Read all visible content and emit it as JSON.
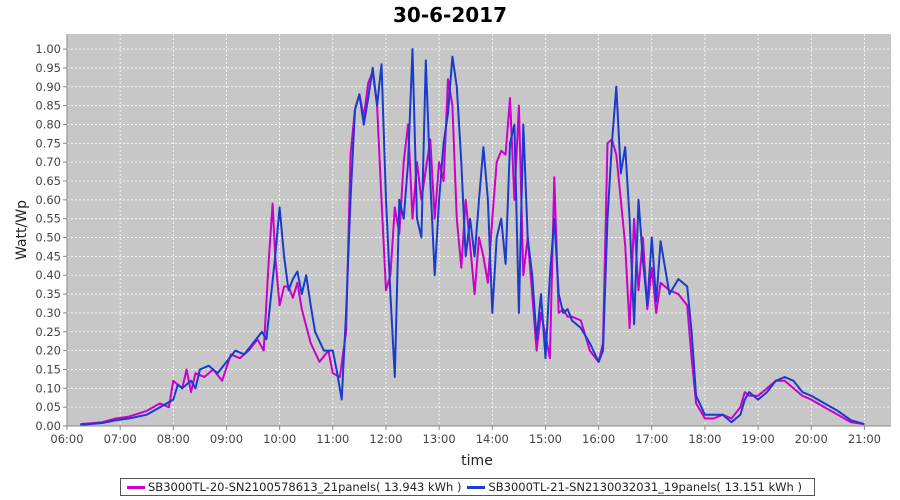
{
  "chart_data": {
    "type": "line",
    "title": "30-6-2017",
    "xlabel": "time",
    "ylabel": "Watt/Wp",
    "xlim": [
      "06:00",
      "21:30"
    ],
    "ylim": [
      0,
      1.04
    ],
    "grid": true,
    "legend_position": "bottom",
    "x_ticks": [
      "06:00",
      "07:00",
      "08:00",
      "09:00",
      "10:00",
      "11:00",
      "12:00",
      "13:00",
      "14:00",
      "15:00",
      "16:00",
      "17:00",
      "18:00",
      "19:00",
      "20:00",
      "21:00"
    ],
    "y_ticks": [
      "0.00",
      "0.05",
      "0.10",
      "0.15",
      "0.20",
      "0.25",
      "0.30",
      "0.35",
      "0.40",
      "0.45",
      "0.50",
      "0.55",
      "0.60",
      "0.65",
      "0.70",
      "0.75",
      "0.80",
      "0.85",
      "0.90",
      "0.95",
      "1.00"
    ],
    "series": [
      {
        "name": "SB3000TL-20-SN2100578613_21panels( 13.943 kWh )",
        "color": "#cc00cc",
        "points": [
          [
            "06:15",
            0.005
          ],
          [
            "06:40",
            0.01
          ],
          [
            "06:55",
            0.02
          ],
          [
            "07:10",
            0.025
          ],
          [
            "07:30",
            0.04
          ],
          [
            "07:45",
            0.06
          ],
          [
            "07:55",
            0.05
          ],
          [
            "08:00",
            0.12
          ],
          [
            "08:10",
            0.1
          ],
          [
            "08:15",
            0.15
          ],
          [
            "08:20",
            0.09
          ],
          [
            "08:25",
            0.14
          ],
          [
            "08:35",
            0.13
          ],
          [
            "08:45",
            0.15
          ],
          [
            "08:55",
            0.12
          ],
          [
            "09:05",
            0.19
          ],
          [
            "09:15",
            0.18
          ],
          [
            "09:25",
            0.2
          ],
          [
            "09:35",
            0.23
          ],
          [
            "09:42",
            0.2
          ],
          [
            "09:48",
            0.45
          ],
          [
            "09:52",
            0.59
          ],
          [
            "09:55",
            0.45
          ],
          [
            "10:00",
            0.32
          ],
          [
            "10:05",
            0.37
          ],
          [
            "10:10",
            0.37
          ],
          [
            "10:15",
            0.34
          ],
          [
            "10:20",
            0.38
          ],
          [
            "10:25",
            0.31
          ],
          [
            "10:35",
            0.22
          ],
          [
            "10:45",
            0.17
          ],
          [
            "10:55",
            0.2
          ],
          [
            "11:00",
            0.14
          ],
          [
            "11:08",
            0.13
          ],
          [
            "11:15",
            0.25
          ],
          [
            "11:20",
            0.72
          ],
          [
            "11:25",
            0.84
          ],
          [
            "11:30",
            0.88
          ],
          [
            "11:35",
            0.82
          ],
          [
            "11:40",
            0.91
          ],
          [
            "11:45",
            0.94
          ],
          [
            "11:50",
            0.85
          ],
          [
            "11:55",
            0.6
          ],
          [
            "12:00",
            0.36
          ],
          [
            "12:05",
            0.4
          ],
          [
            "12:10",
            0.58
          ],
          [
            "12:15",
            0.51
          ],
          [
            "12:20",
            0.7
          ],
          [
            "12:25",
            0.8
          ],
          [
            "12:30",
            0.55
          ],
          [
            "12:35",
            0.7
          ],
          [
            "12:40",
            0.6
          ],
          [
            "12:45",
            0.68
          ],
          [
            "12:50",
            0.76
          ],
          [
            "12:55",
            0.55
          ],
          [
            "13:00",
            0.7
          ],
          [
            "13:05",
            0.65
          ],
          [
            "13:10",
            0.92
          ],
          [
            "13:15",
            0.85
          ],
          [
            "13:20",
            0.55
          ],
          [
            "13:25",
            0.42
          ],
          [
            "13:30",
            0.6
          ],
          [
            "13:35",
            0.48
          ],
          [
            "13:40",
            0.35
          ],
          [
            "13:45",
            0.5
          ],
          [
            "13:50",
            0.45
          ],
          [
            "13:55",
            0.38
          ],
          [
            "14:00",
            0.55
          ],
          [
            "14:05",
            0.7
          ],
          [
            "14:10",
            0.73
          ],
          [
            "14:15",
            0.72
          ],
          [
            "14:20",
            0.87
          ],
          [
            "14:25",
            0.6
          ],
          [
            "14:30",
            0.85
          ],
          [
            "14:35",
            0.4
          ],
          [
            "14:40",
            0.5
          ],
          [
            "14:45",
            0.35
          ],
          [
            "14:50",
            0.2
          ],
          [
            "14:55",
            0.3
          ],
          [
            "15:00",
            0.24
          ],
          [
            "15:05",
            0.18
          ],
          [
            "15:10",
            0.66
          ],
          [
            "15:15",
            0.3
          ],
          [
            "15:20",
            0.31
          ],
          [
            "15:25",
            0.29
          ],
          [
            "15:30",
            0.29
          ],
          [
            "15:40",
            0.28
          ],
          [
            "15:50",
            0.2
          ],
          [
            "16:00",
            0.17
          ],
          [
            "16:05",
            0.22
          ],
          [
            "16:10",
            0.75
          ],
          [
            "16:15",
            0.76
          ],
          [
            "16:20",
            0.72
          ],
          [
            "16:25",
            0.6
          ],
          [
            "16:30",
            0.48
          ],
          [
            "16:35",
            0.26
          ],
          [
            "16:40",
            0.55
          ],
          [
            "16:45",
            0.36
          ],
          [
            "16:50",
            0.5
          ],
          [
            "16:55",
            0.31
          ],
          [
            "17:00",
            0.42
          ],
          [
            "17:05",
            0.3
          ],
          [
            "17:10",
            0.38
          ],
          [
            "17:20",
            0.36
          ],
          [
            "17:30",
            0.35
          ],
          [
            "17:40",
            0.32
          ],
          [
            "17:45",
            0.18
          ],
          [
            "17:50",
            0.06
          ],
          [
            "18:00",
            0.02
          ],
          [
            "18:10",
            0.02
          ],
          [
            "18:20",
            0.03
          ],
          [
            "18:30",
            0.02
          ],
          [
            "18:40",
            0.05
          ],
          [
            "18:45",
            0.09
          ],
          [
            "18:50",
            0.08
          ],
          [
            "19:00",
            0.08
          ],
          [
            "19:10",
            0.1
          ],
          [
            "19:20",
            0.12
          ],
          [
            "19:30",
            0.12
          ],
          [
            "19:40",
            0.1
          ],
          [
            "19:50",
            0.08
          ],
          [
            "20:00",
            0.07
          ],
          [
            "20:15",
            0.05
          ],
          [
            "20:30",
            0.03
          ],
          [
            "20:45",
            0.01
          ],
          [
            "21:00",
            0.005
          ]
        ]
      },
      {
        "name": "SB3000TL-21-SN2130032031_19panels( 13.151 kWh )",
        "color": "#1a3ccc",
        "points": [
          [
            "06:15",
            0.003
          ],
          [
            "06:40",
            0.008
          ],
          [
            "06:55",
            0.015
          ],
          [
            "07:10",
            0.02
          ],
          [
            "07:30",
            0.03
          ],
          [
            "07:45",
            0.05
          ],
          [
            "08:00",
            0.07
          ],
          [
            "08:05",
            0.11
          ],
          [
            "08:10",
            0.1
          ],
          [
            "08:20",
            0.12
          ],
          [
            "08:25",
            0.1
          ],
          [
            "08:30",
            0.15
          ],
          [
            "08:40",
            0.16
          ],
          [
            "08:50",
            0.14
          ],
          [
            "09:00",
            0.17
          ],
          [
            "09:10",
            0.2
          ],
          [
            "09:20",
            0.19
          ],
          [
            "09:30",
            0.22
          ],
          [
            "09:40",
            0.25
          ],
          [
            "09:45",
            0.23
          ],
          [
            "09:55",
            0.45
          ],
          [
            "10:00",
            0.58
          ],
          [
            "10:05",
            0.45
          ],
          [
            "10:10",
            0.36
          ],
          [
            "10:15",
            0.39
          ],
          [
            "10:20",
            0.41
          ],
          [
            "10:25",
            0.35
          ],
          [
            "10:30",
            0.4
          ],
          [
            "10:35",
            0.32
          ],
          [
            "10:40",
            0.25
          ],
          [
            "10:50",
            0.2
          ],
          [
            "11:00",
            0.2
          ],
          [
            "11:05",
            0.14
          ],
          [
            "11:10",
            0.07
          ],
          [
            "11:15",
            0.3
          ],
          [
            "11:20",
            0.6
          ],
          [
            "11:25",
            0.84
          ],
          [
            "11:30",
            0.88
          ],
          [
            "11:35",
            0.8
          ],
          [
            "11:40",
            0.87
          ],
          [
            "11:45",
            0.95
          ],
          [
            "11:50",
            0.85
          ],
          [
            "11:55",
            0.96
          ],
          [
            "12:00",
            0.6
          ],
          [
            "12:05",
            0.35
          ],
          [
            "12:10",
            0.13
          ],
          [
            "12:15",
            0.6
          ],
          [
            "12:20",
            0.55
          ],
          [
            "12:25",
            0.7
          ],
          [
            "12:30",
            1.0
          ],
          [
            "12:35",
            0.55
          ],
          [
            "12:40",
            0.5
          ],
          [
            "12:45",
            0.97
          ],
          [
            "12:50",
            0.65
          ],
          [
            "12:55",
            0.4
          ],
          [
            "13:00",
            0.6
          ],
          [
            "13:05",
            0.75
          ],
          [
            "13:10",
            0.83
          ],
          [
            "13:15",
            0.98
          ],
          [
            "13:20",
            0.9
          ],
          [
            "13:25",
            0.7
          ],
          [
            "13:30",
            0.45
          ],
          [
            "13:35",
            0.55
          ],
          [
            "13:40",
            0.45
          ],
          [
            "13:45",
            0.6
          ],
          [
            "13:50",
            0.74
          ],
          [
            "13:55",
            0.6
          ],
          [
            "14:00",
            0.3
          ],
          [
            "14:05",
            0.5
          ],
          [
            "14:10",
            0.55
          ],
          [
            "14:15",
            0.43
          ],
          [
            "14:20",
            0.75
          ],
          [
            "14:25",
            0.8
          ],
          [
            "14:30",
            0.3
          ],
          [
            "14:35",
            0.8
          ],
          [
            "14:40",
            0.5
          ],
          [
            "14:45",
            0.4
          ],
          [
            "14:50",
            0.23
          ],
          [
            "14:55",
            0.35
          ],
          [
            "15:00",
            0.18
          ],
          [
            "15:05",
            0.4
          ],
          [
            "15:10",
            0.55
          ],
          [
            "15:15",
            0.35
          ],
          [
            "15:20",
            0.3
          ],
          [
            "15:25",
            0.31
          ],
          [
            "15:30",
            0.28
          ],
          [
            "15:40",
            0.26
          ],
          [
            "15:50",
            0.22
          ],
          [
            "16:00",
            0.17
          ],
          [
            "16:05",
            0.2
          ],
          [
            "16:10",
            0.55
          ],
          [
            "16:15",
            0.75
          ],
          [
            "16:20",
            0.9
          ],
          [
            "16:25",
            0.67
          ],
          [
            "16:30",
            0.74
          ],
          [
            "16:35",
            0.55
          ],
          [
            "16:40",
            0.27
          ],
          [
            "16:45",
            0.6
          ],
          [
            "16:50",
            0.44
          ],
          [
            "16:55",
            0.32
          ],
          [
            "17:00",
            0.5
          ],
          [
            "17:05",
            0.33
          ],
          [
            "17:10",
            0.49
          ],
          [
            "17:20",
            0.35
          ],
          [
            "17:30",
            0.39
          ],
          [
            "17:40",
            0.37
          ],
          [
            "17:45",
            0.25
          ],
          [
            "17:50",
            0.08
          ],
          [
            "18:00",
            0.03
          ],
          [
            "18:10",
            0.03
          ],
          [
            "18:20",
            0.03
          ],
          [
            "18:30",
            0.01
          ],
          [
            "18:40",
            0.03
          ],
          [
            "18:45",
            0.07
          ],
          [
            "18:50",
            0.09
          ],
          [
            "19:00",
            0.07
          ],
          [
            "19:10",
            0.09
          ],
          [
            "19:20",
            0.12
          ],
          [
            "19:30",
            0.13
          ],
          [
            "19:40",
            0.12
          ],
          [
            "19:50",
            0.09
          ],
          [
            "20:00",
            0.08
          ],
          [
            "20:15",
            0.06
          ],
          [
            "20:30",
            0.04
          ],
          [
            "20:45",
            0.015
          ],
          [
            "21:00",
            0.005
          ]
        ]
      }
    ]
  }
}
